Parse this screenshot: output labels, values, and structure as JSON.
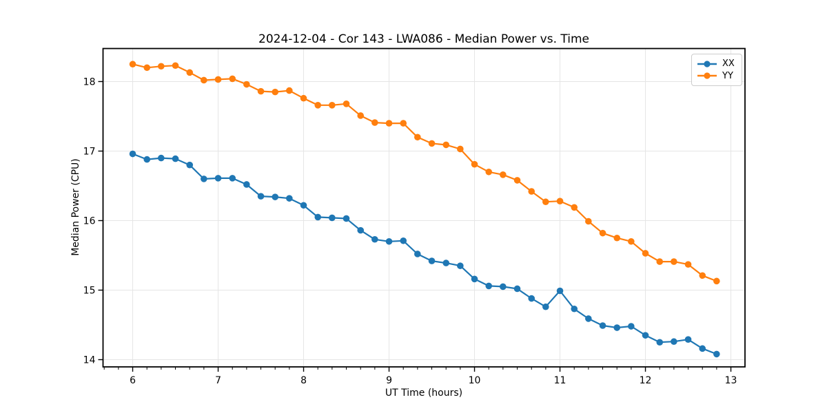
{
  "chart_data": {
    "type": "line",
    "title": "2024-12-04 - Cor 143 - LWA086 - Median Power vs. Time",
    "xlabel": "UT Time (hours)",
    "ylabel": "Median Power (CPU)",
    "xlim": [
      5.653,
      13.165
    ],
    "ylim": [
      13.896,
      18.475
    ],
    "xticks": [
      6,
      7,
      8,
      9,
      10,
      11,
      12,
      13
    ],
    "yticks": [
      14,
      15,
      16,
      17,
      18
    ],
    "minor_xtick_step": 0.1666667,
    "grid": true,
    "legend_position": "upper right",
    "marker": "circle",
    "x": [
      6.0,
      6.167,
      6.333,
      6.5,
      6.667,
      6.833,
      7.0,
      7.167,
      7.333,
      7.5,
      7.667,
      7.833,
      8.0,
      8.167,
      8.333,
      8.5,
      8.667,
      8.833,
      9.0,
      9.167,
      9.333,
      9.5,
      9.667,
      9.833,
      10.0,
      10.167,
      10.333,
      10.5,
      10.667,
      10.833,
      11.0,
      11.167,
      11.333,
      11.5,
      11.667,
      11.833,
      12.0,
      12.167,
      12.333,
      12.5,
      12.667,
      12.833
    ],
    "series": [
      {
        "name": "XX",
        "color": "#1f77b4",
        "values": [
          16.96,
          16.88,
          16.9,
          16.89,
          16.8,
          16.6,
          16.61,
          16.61,
          16.52,
          16.35,
          16.34,
          16.32,
          16.22,
          16.05,
          16.04,
          16.03,
          15.86,
          15.73,
          15.7,
          15.71,
          15.52,
          15.42,
          15.39,
          15.35,
          15.16,
          15.06,
          15.05,
          15.02,
          14.88,
          14.76,
          14.99,
          14.73,
          14.59,
          14.49,
          14.46,
          14.48,
          14.35,
          14.25,
          14.26,
          14.29,
          14.16,
          14.08
        ]
      },
      {
        "name": "YY",
        "color": "#ff7f0e",
        "values": [
          18.25,
          18.2,
          18.22,
          18.23,
          18.13,
          18.02,
          18.03,
          18.04,
          17.96,
          17.86,
          17.85,
          17.87,
          17.76,
          17.66,
          17.66,
          17.68,
          17.51,
          17.41,
          17.4,
          17.4,
          17.2,
          17.11,
          17.09,
          17.03,
          16.81,
          16.7,
          16.66,
          16.58,
          16.42,
          16.27,
          16.28,
          16.19,
          15.99,
          15.82,
          15.75,
          15.7,
          15.53,
          15.41,
          15.41,
          15.37,
          15.21,
          15.13
        ]
      }
    ],
    "style": {
      "grid_color": "#e5e5e5",
      "spine_color": "#000000",
      "text_color": "#000000",
      "background": "#ffffff"
    }
  }
}
